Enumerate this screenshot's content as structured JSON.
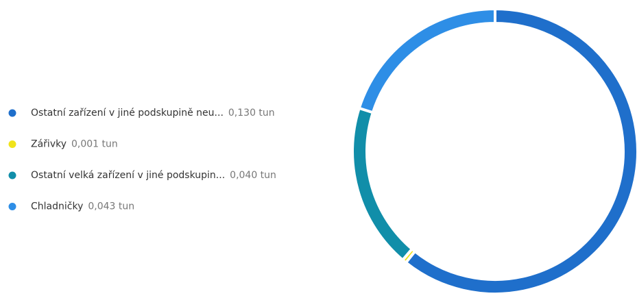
{
  "chart_data": {
    "type": "donut",
    "categories": [
      "Ostatní zařízení v jiné podskupině neu...",
      "Zářivky",
      "Ostatní velká zařízení v jiné podskupin...",
      "Chladničky"
    ],
    "values": [
      0.13,
      0.001,
      0.04,
      0.043
    ],
    "value_labels": [
      "0,130 tun",
      "0,001 tun",
      "0,040 tun",
      "0,043 tun"
    ],
    "colors": [
      "#1f6fcb",
      "#f0e31a",
      "#118ea9",
      "#2e8ee6"
    ],
    "legend": "left"
  }
}
